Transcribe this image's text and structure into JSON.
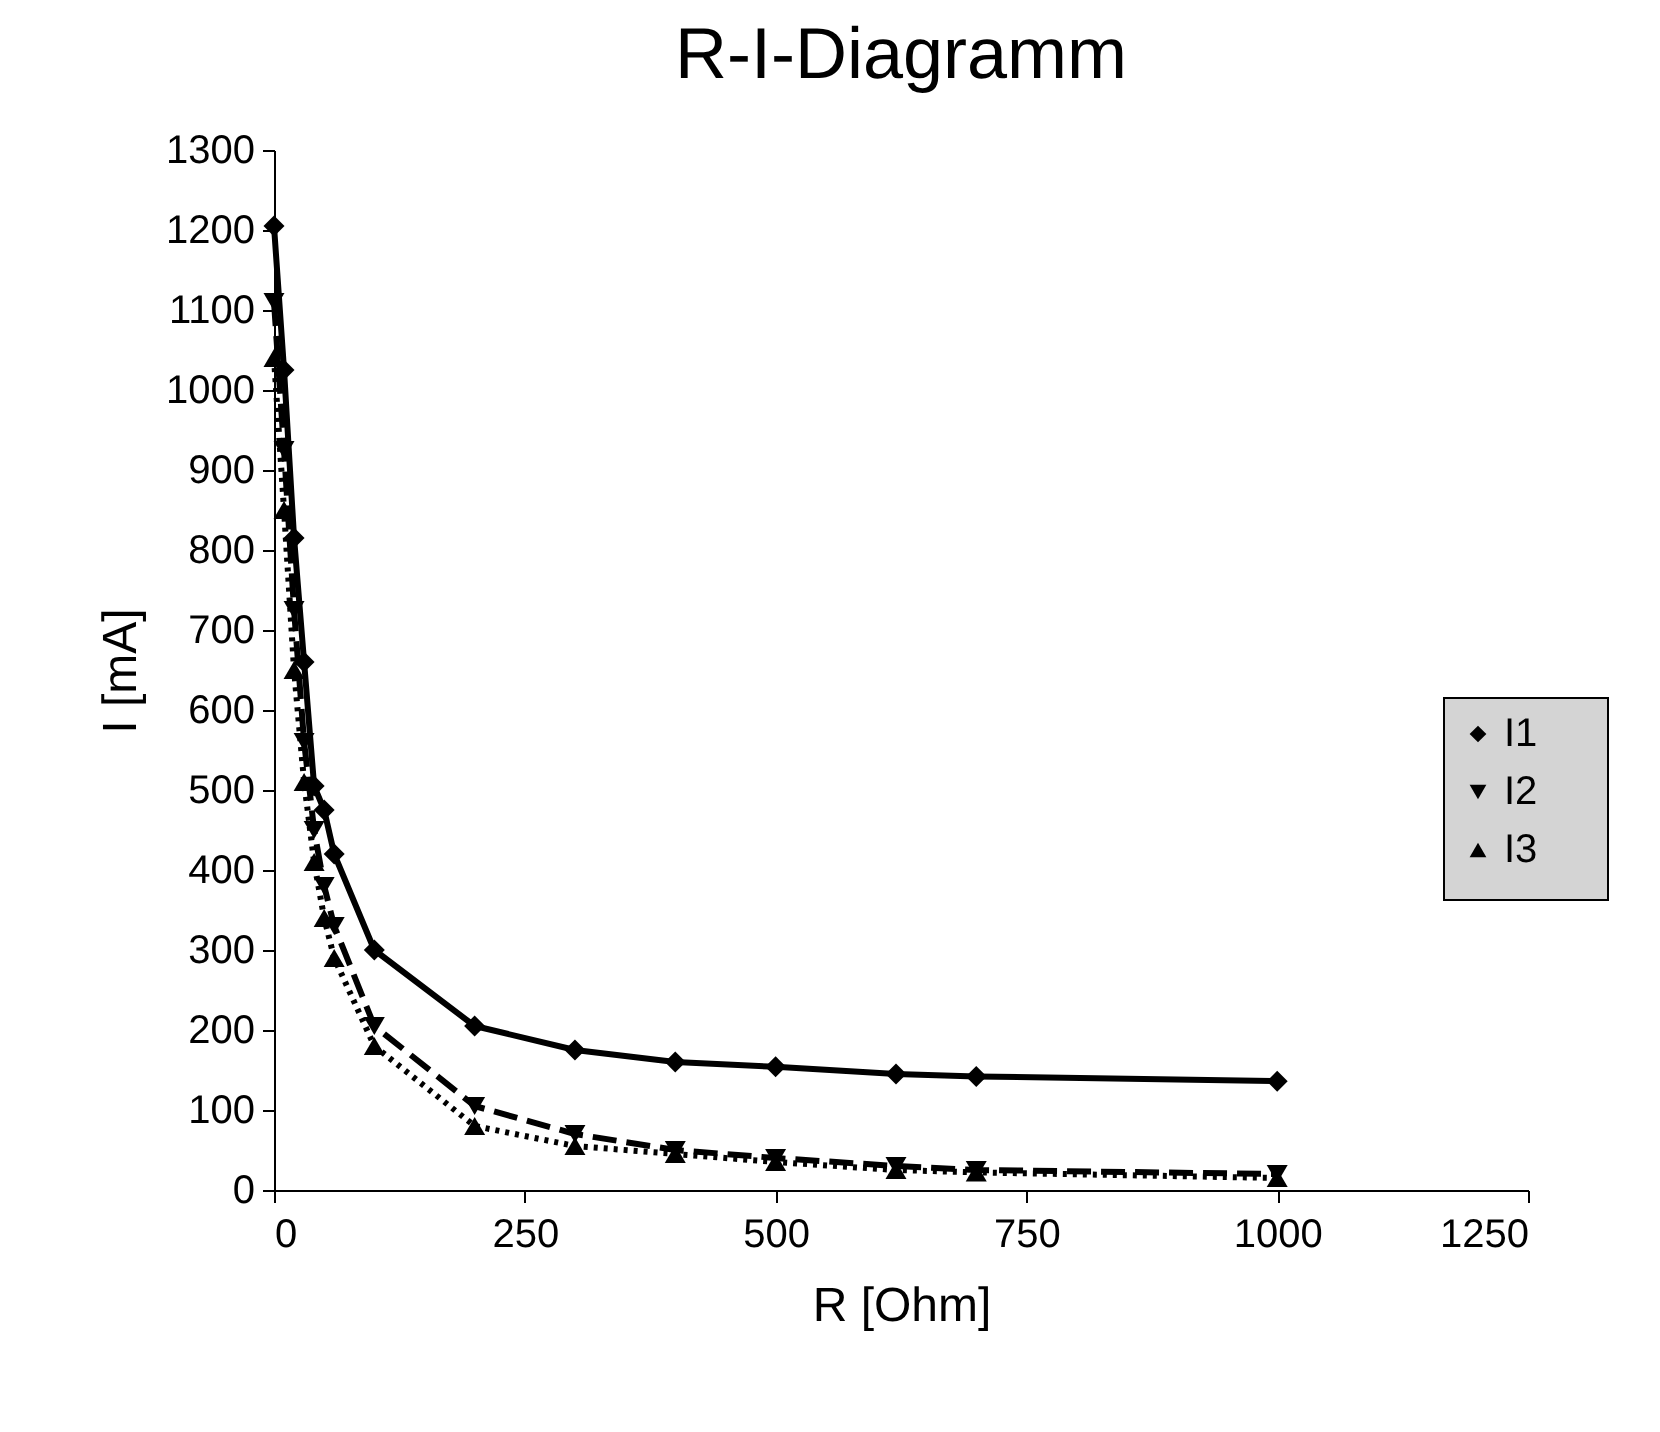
{
  "chart_data": {
    "type": "line",
    "title": "R-I-Diagramm",
    "xlabel": "R [Ohm]",
    "ylabel": "I [mA]",
    "xlim": [
      0,
      1250
    ],
    "xticks": [
      0,
      250,
      500,
      750,
      1000,
      1250
    ],
    "ylim": [
      0,
      1300
    ],
    "yticks": [
      0,
      100,
      200,
      300,
      400,
      500,
      600,
      700,
      800,
      900,
      1000,
      1100,
      1200,
      1300
    ],
    "grid": false,
    "legend": "right",
    "x": [
      0,
      10,
      20,
      30,
      40,
      50,
      60,
      100,
      200,
      300,
      400,
      500,
      620,
      700,
      1000
    ],
    "series": [
      {
        "name": "I1",
        "color": "#000000",
        "marker": "diamond",
        "line_style": "solid",
        "values": [
          1205,
          1025,
          815,
          660,
          505,
          475,
          420,
          300,
          205,
          175,
          160,
          154,
          145,
          142,
          136
        ]
      },
      {
        "name": "I2",
        "color": "#000000",
        "marker": "triangle-down",
        "line_style": "dashed",
        "values": [
          1110,
          925,
          725,
          560,
          450,
          380,
          330,
          205,
          105,
          70,
          50,
          40,
          30,
          25,
          20
        ]
      },
      {
        "name": "I3",
        "color": "#000000",
        "marker": "triangle",
        "line_style": "dotted",
        "values": [
          1040,
          850,
          650,
          510,
          410,
          340,
          290,
          180,
          80,
          55,
          45,
          35,
          25,
          22,
          15
        ]
      }
    ]
  }
}
